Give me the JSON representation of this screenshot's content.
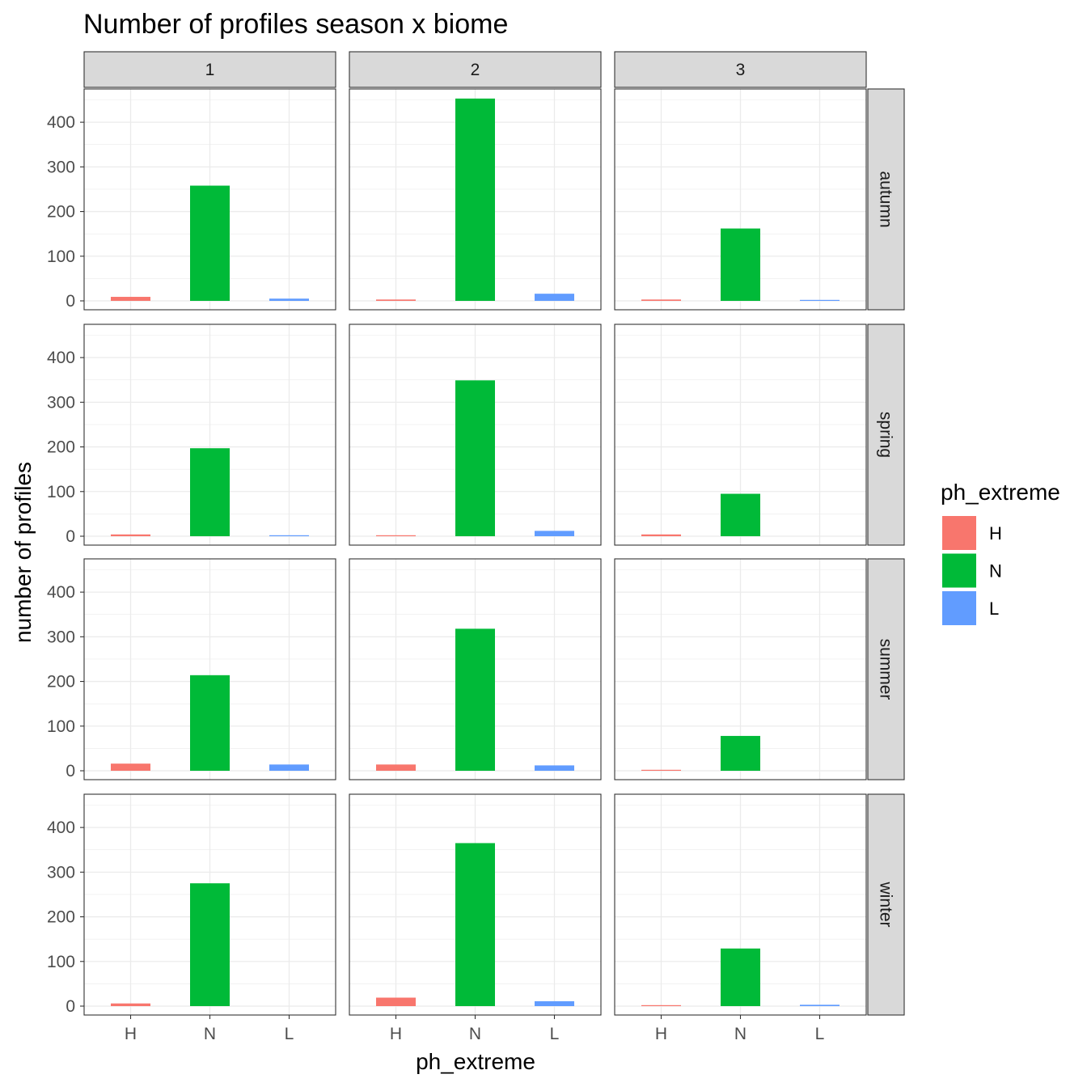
{
  "chart_data": {
    "type": "bar",
    "title": "Number of profiles season x biome",
    "xlabel": "ph_extreme",
    "ylabel": "number of profiles",
    "categories": [
      "H",
      "N",
      "L"
    ],
    "facet_columns": [
      "1",
      "2",
      "3"
    ],
    "facet_rows": [
      "autumn",
      "spring",
      "summer",
      "winter"
    ],
    "ylim": [
      0,
      470
    ],
    "yticks": [
      0,
      100,
      200,
      300,
      400
    ],
    "grid": true,
    "legend": {
      "title": "ph_extreme",
      "position": "right",
      "entries": [
        "H",
        "N",
        "L"
      ]
    },
    "colors": {
      "H": "#F8766D",
      "N": "#00BA38",
      "L": "#619CFF"
    },
    "panels": [
      {
        "row": "autumn",
        "col": "1",
        "values": [
          9,
          258,
          5
        ]
      },
      {
        "row": "autumn",
        "col": "2",
        "values": [
          3,
          453,
          16
        ]
      },
      {
        "row": "autumn",
        "col": "3",
        "values": [
          3,
          162,
          1
        ]
      },
      {
        "row": "spring",
        "col": "1",
        "values": [
          4,
          197,
          2
        ]
      },
      {
        "row": "spring",
        "col": "2",
        "values": [
          1,
          349,
          12
        ]
      },
      {
        "row": "spring",
        "col": "3",
        "values": [
          4,
          95,
          0
        ]
      },
      {
        "row": "summer",
        "col": "1",
        "values": [
          16,
          214,
          14
        ]
      },
      {
        "row": "summer",
        "col": "2",
        "values": [
          14,
          318,
          12
        ]
      },
      {
        "row": "summer",
        "col": "3",
        "values": [
          1,
          78,
          0
        ]
      },
      {
        "row": "winter",
        "col": "1",
        "values": [
          6,
          275,
          0
        ]
      },
      {
        "row": "winter",
        "col": "2",
        "values": [
          19,
          365,
          11
        ]
      },
      {
        "row": "winter",
        "col": "3",
        "values": [
          2,
          129,
          3
        ]
      }
    ]
  }
}
